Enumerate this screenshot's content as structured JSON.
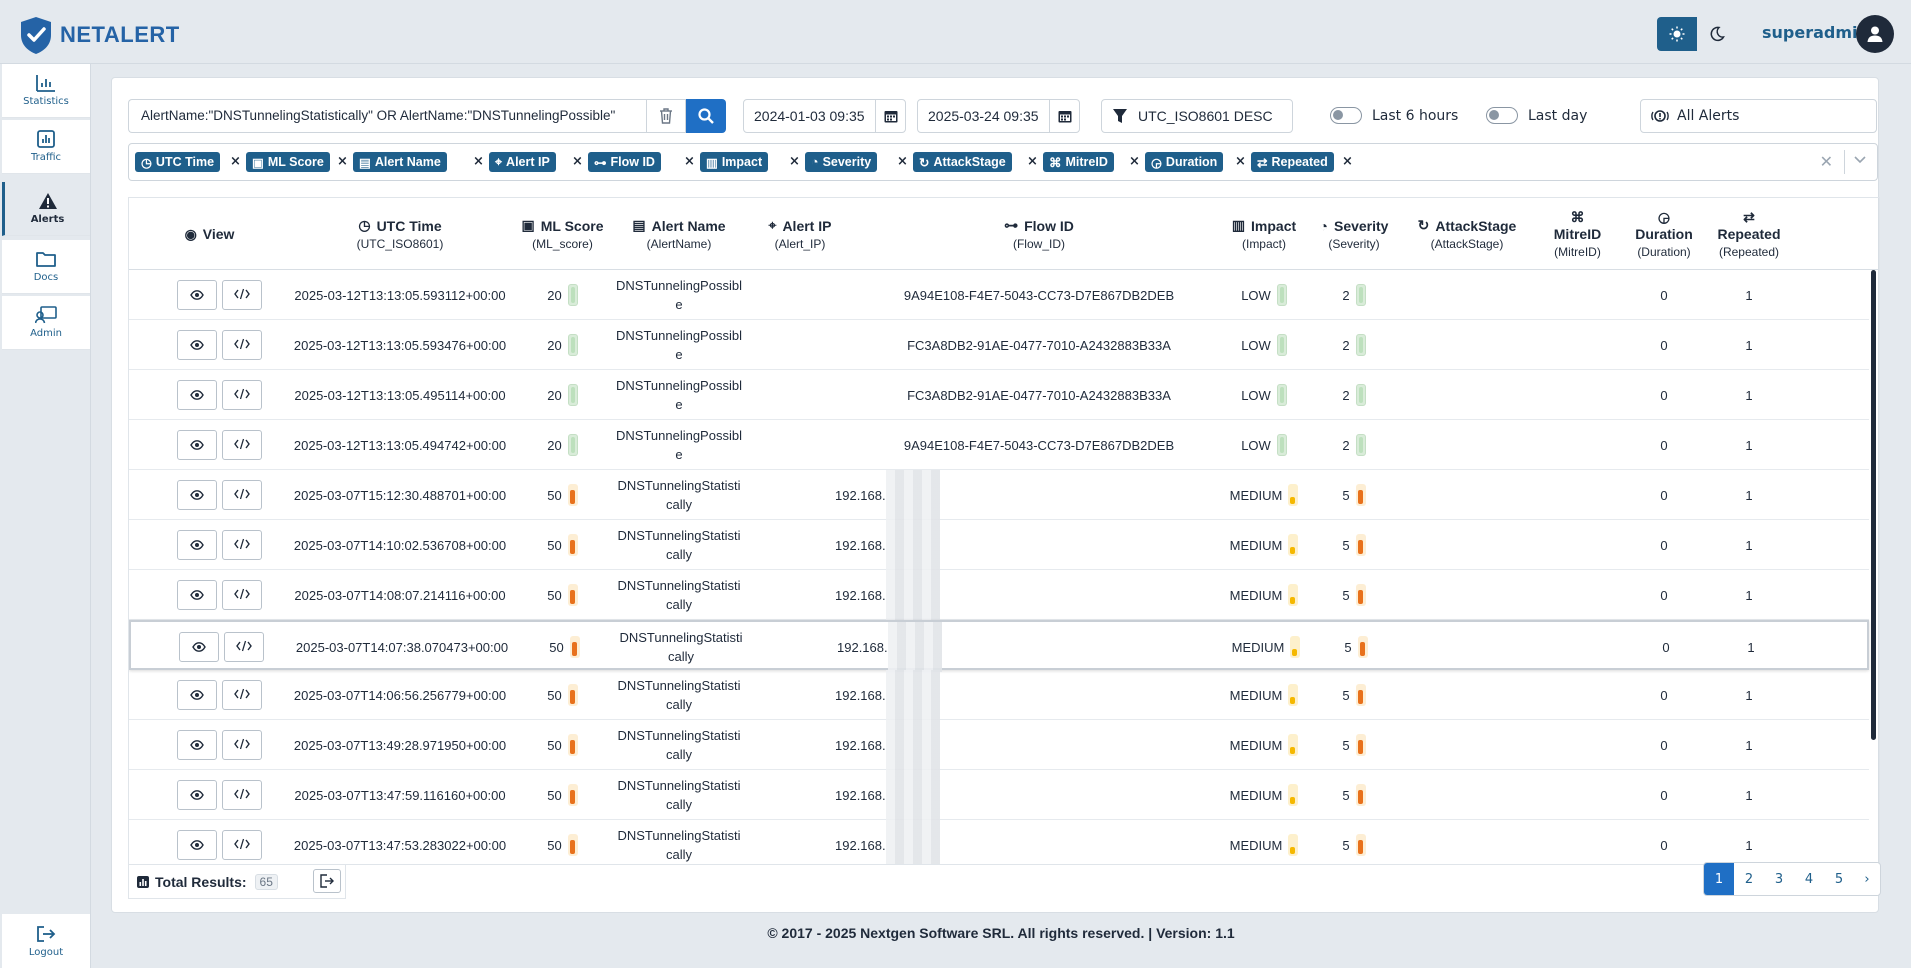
{
  "brand": {
    "name": "NETALERT",
    "color": "#2563a6"
  },
  "user": {
    "name": "superadmin"
  },
  "sidebar": {
    "items": [
      {
        "label": "Statistics",
        "icon": "bar-chart-icon"
      },
      {
        "label": "Traffic",
        "icon": "line-chart-icon"
      },
      {
        "label": "Alerts",
        "icon": "warning-icon",
        "active": true
      },
      {
        "label": "Docs",
        "icon": "folder-icon"
      },
      {
        "label": "Admin",
        "icon": "admin-icon"
      }
    ],
    "logout": "Logout"
  },
  "filters": {
    "query": "AlertName:\"DNSTunnelingStatistically\" OR AlertName:\"DNSTunnelingPossible\"",
    "date_from": "2024-01-03 09:35",
    "date_to": "2025-03-24 09:35",
    "sort": "UTC_ISO8601 DESC",
    "toggle_6h": "Last 6 hours",
    "toggle_day": "Last day",
    "alert_scope": "All Alerts"
  },
  "chips": [
    "UTC Time",
    "ML Score",
    "Alert Name",
    "Alert IP",
    "Flow ID",
    "Impact",
    "Severity",
    "AttackStage",
    "MitreID",
    "Duration",
    "Repeated"
  ],
  "table": {
    "columns": [
      {
        "title": "View",
        "sub": ""
      },
      {
        "title": "UTC Time",
        "sub": "(UTC_ISO8601)"
      },
      {
        "title": "ML Score",
        "sub": "(ML_score)"
      },
      {
        "title": "Alert Name",
        "sub": "(AlertName)"
      },
      {
        "title": "Alert IP",
        "sub": "(Alert_IP)"
      },
      {
        "title": "Flow ID",
        "sub": "(Flow_ID)"
      },
      {
        "title": "Impact",
        "sub": "(Impact)"
      },
      {
        "title": "Severity",
        "sub": "(Severity)"
      },
      {
        "title": "AttackStage",
        "sub": "(AttackStage)"
      },
      {
        "title": "MitreID",
        "sub": "(MitreID)"
      },
      {
        "title": "Duration",
        "sub": "(Duration)"
      },
      {
        "title": "Repeated",
        "sub": "(Repeated)"
      }
    ],
    "rows": [
      {
        "time": "2025-03-12T13:13:05.593112+00:00",
        "score": "20",
        "name": "DNSTunnelingPossible",
        "ip": "",
        "flow": "9A94E108-F4E7-5043-CC73-D7E867DB2DEB",
        "impact": "LOW",
        "severity": "2",
        "level": "low",
        "duration": "0",
        "repeated": "1"
      },
      {
        "time": "2025-03-12T13:13:05.593476+00:00",
        "score": "20",
        "name": "DNSTunnelingPossible",
        "ip": "",
        "flow": "FC3A8DB2-91AE-0477-7010-A2432883B33A",
        "impact": "LOW",
        "severity": "2",
        "level": "low",
        "duration": "0",
        "repeated": "1"
      },
      {
        "time": "2025-03-12T13:13:05.495114+00:00",
        "score": "20",
        "name": "DNSTunnelingPossible",
        "ip": "",
        "flow": "FC3A8DB2-91AE-0477-7010-A2432883B33A",
        "impact": "LOW",
        "severity": "2",
        "level": "low",
        "duration": "0",
        "repeated": "1"
      },
      {
        "time": "2025-03-12T13:13:05.494742+00:00",
        "score": "20",
        "name": "DNSTunnelingPossible",
        "ip": "",
        "flow": "9A94E108-F4E7-5043-CC73-D7E867DB2DEB",
        "impact": "LOW",
        "severity": "2",
        "level": "low",
        "duration": "0",
        "repeated": "1"
      },
      {
        "time": "2025-03-07T15:12:30.488701+00:00",
        "score": "50",
        "name": "DNSTunnelingStatistically",
        "ip": "192.168.",
        "flow": "",
        "impact": "MEDIUM",
        "severity": "5",
        "level": "med",
        "duration": "0",
        "repeated": "1"
      },
      {
        "time": "2025-03-07T14:10:02.536708+00:00",
        "score": "50",
        "name": "DNSTunnelingStatistically",
        "ip": "192.168.",
        "flow": "",
        "impact": "MEDIUM",
        "severity": "5",
        "level": "med",
        "duration": "0",
        "repeated": "1"
      },
      {
        "time": "2025-03-07T14:08:07.214116+00:00",
        "score": "50",
        "name": "DNSTunnelingStatistically",
        "ip": "192.168.",
        "flow": "",
        "impact": "MEDIUM",
        "severity": "5",
        "level": "med",
        "duration": "0",
        "repeated": "1"
      },
      {
        "time": "2025-03-07T14:07:38.070473+00:00",
        "score": "50",
        "name": "DNSTunnelingStatistically",
        "ip": "192.168.",
        "flow": "",
        "impact": "MEDIUM",
        "severity": "5",
        "level": "med",
        "duration": "0",
        "repeated": "1"
      },
      {
        "time": "2025-03-07T14:06:56.256779+00:00",
        "score": "50",
        "name": "DNSTunnelingStatistically",
        "ip": "192.168.",
        "flow": "",
        "impact": "MEDIUM",
        "severity": "5",
        "level": "med",
        "duration": "0",
        "repeated": "1"
      },
      {
        "time": "2025-03-07T13:49:28.971950+00:00",
        "score": "50",
        "name": "DNSTunnelingStatistically",
        "ip": "192.168.",
        "flow": "",
        "impact": "MEDIUM",
        "severity": "5",
        "level": "med",
        "duration": "0",
        "repeated": "1"
      },
      {
        "time": "2025-03-07T13:47:59.116160+00:00",
        "score": "50",
        "name": "DNSTunnelingStatistically",
        "ip": "192.168.",
        "flow": "",
        "impact": "MEDIUM",
        "severity": "5",
        "level": "med",
        "duration": "0",
        "repeated": "1"
      },
      {
        "time": "2025-03-07T13:47:53.283022+00:00",
        "score": "50",
        "name": "DNSTunnelingStatistically",
        "ip": "192.168.",
        "flow": "",
        "impact": "MEDIUM",
        "severity": "5",
        "level": "med",
        "duration": "0",
        "repeated": "1"
      }
    ]
  },
  "results": {
    "label": "Total Results:",
    "count": "65"
  },
  "pagination": {
    "pages": [
      "1",
      "2",
      "3",
      "4",
      "5"
    ],
    "next": "›",
    "current": "1"
  },
  "footer": "© 2017 - 2025 Nextgen Software SRL. All rights reserved. | Version: 1.1",
  "colors": {
    "primary": "#1f5f8b",
    "accent": "#1f6fc5",
    "low": "#bde0bd",
    "medium": "#e8711c"
  }
}
